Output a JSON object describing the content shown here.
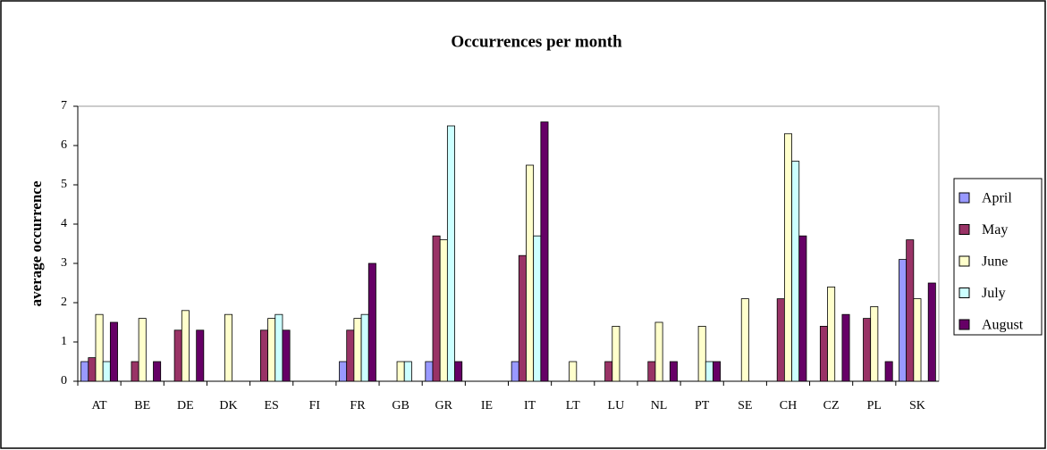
{
  "chart_data": {
    "type": "bar",
    "title": "Occurrences per month",
    "y_label": "average occurrence",
    "categories": [
      "AT",
      "BE",
      "DE",
      "DK",
      "ES",
      "FI",
      "FR",
      "GB",
      "GR",
      "IE",
      "IT",
      "LT",
      "LU",
      "NL",
      "PT",
      "SE",
      "CH",
      "CZ",
      "PL",
      "SK"
    ],
    "series": [
      {
        "name": "April",
        "color": "#9999ff",
        "values": [
          0.5,
          null,
          null,
          null,
          null,
          null,
          0.5,
          null,
          0.5,
          null,
          0.5,
          null,
          null,
          null,
          null,
          null,
          null,
          null,
          null,
          3.1
        ]
      },
      {
        "name": "May",
        "color": "#993366",
        "values": [
          0.6,
          0.5,
          1.3,
          null,
          1.3,
          null,
          1.3,
          null,
          3.7,
          null,
          3.2,
          null,
          0.5,
          0.5,
          null,
          null,
          2.1,
          1.4,
          1.6,
          3.6
        ]
      },
      {
        "name": "June",
        "color": "#ffffcc",
        "values": [
          1.7,
          1.6,
          1.8,
          1.7,
          1.6,
          null,
          1.6,
          0.5,
          3.6,
          null,
          5.5,
          0.5,
          1.4,
          1.5,
          1.4,
          2.1,
          6.3,
          2.4,
          1.9,
          2.1
        ]
      },
      {
        "name": "July",
        "color": "#ccffff",
        "values": [
          0.5,
          null,
          null,
          null,
          1.7,
          null,
          1.7,
          0.5,
          6.5,
          null,
          3.7,
          null,
          null,
          null,
          0.5,
          null,
          5.6,
          null,
          null,
          null
        ]
      },
      {
        "name": "August",
        "color": "#660066",
        "values": [
          1.5,
          0.5,
          1.3,
          null,
          1.3,
          null,
          3.0,
          null,
          0.5,
          null,
          6.6,
          null,
          null,
          0.5,
          0.5,
          null,
          3.7,
          1.7,
          0.5,
          2.5
        ]
      }
    ],
    "ylim": [
      0,
      7
    ],
    "yticks": [
      0,
      1,
      2,
      3,
      4,
      5,
      6,
      7
    ]
  }
}
